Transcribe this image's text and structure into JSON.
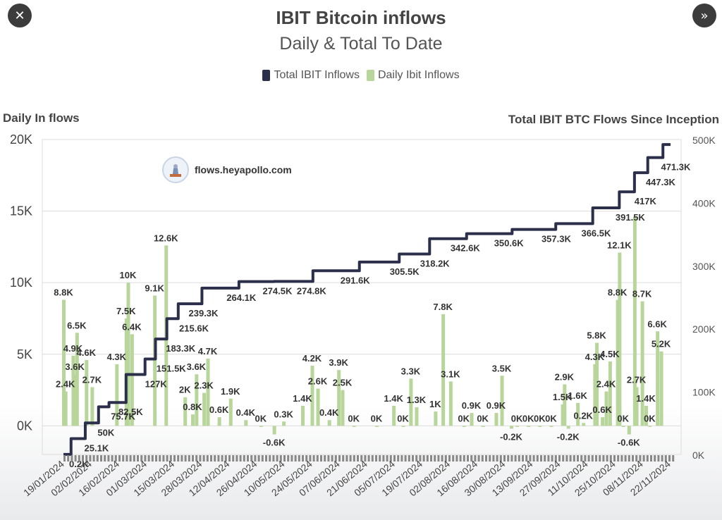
{
  "nav": {
    "close_glyph": "✕",
    "next_glyph": "»"
  },
  "colors": {
    "total": "#2b2f4a",
    "daily": "#b8d69b",
    "grid": "#dcdcdc"
  },
  "watermark": {
    "text": "flows.heyapollo.com",
    "logo_icon": "apollo-statue-logo"
  },
  "chart_data": {
    "type": "bar+line",
    "title": "IBIT Bitcoin inflows",
    "subtitle": "Daily & Total To Date",
    "legend": [
      "Total IBIT Inflows",
      "Daily Ibit Inflows"
    ],
    "legend_placement": "top-center",
    "ylabel_left": "Daily In flows",
    "ylabel_right": "Total IBIT BTC Flows Since Inception",
    "yticks_left": [
      "20K",
      "15K",
      "10K",
      "5K",
      "0K"
    ],
    "yticks_right": [
      "500K",
      "400K",
      "300K",
      "200K",
      "100K",
      "0K"
    ],
    "ylim_left": [
      -2000,
      20000
    ],
    "ylim_right": [
      0,
      500000
    ],
    "grid": true,
    "x_tick_labels": [
      "19/01/2024",
      "02/02/2024",
      "16/02/2024",
      "01/03/2024",
      "15/03/2024",
      "28/03/2024",
      "12/04/2024",
      "26/04/2024",
      "10/05/2024",
      "24/05/2024",
      "07/06/2024",
      "21/06/2024",
      "05/07/2024",
      "19/07/2024",
      "02/08/2024",
      "16/08/2024",
      "30/08/2024",
      "13/09/2024",
      "27/09/2024",
      "11/10/2024",
      "25/10/2024",
      "08/11/2024",
      "22/11/2024"
    ],
    "total_series": {
      "name": "Total IBIT Inflows",
      "points": [
        {
          "date": "2024-01-11",
          "value": 0.2,
          "label": "0.2K"
        },
        {
          "date": "2024-01-19",
          "value": 25.1,
          "label": "25.1K"
        },
        {
          "date": "2024-01-26",
          "value": 50,
          "label": "50K"
        },
        {
          "date": "2024-02-02",
          "value": 75.7,
          "label": "75.7K"
        },
        {
          "date": "2024-02-06",
          "value": 82.5,
          "label": "82.5K"
        },
        {
          "date": "2024-02-20",
          "value": 127,
          "label": "127K"
        },
        {
          "date": "2024-02-26",
          "value": 151.5,
          "label": "151.5K"
        },
        {
          "date": "2024-03-02",
          "value": 183.3,
          "label": "183.3K"
        },
        {
          "date": "2024-03-09",
          "value": 215.6,
          "label": "215.6K"
        },
        {
          "date": "2024-03-14",
          "value": 239.3,
          "label": "239.3K"
        },
        {
          "date": "2024-04-03",
          "value": 264.1,
          "label": "264.1K"
        },
        {
          "date": "2024-04-22",
          "value": 274.5,
          "label": "274.5K"
        },
        {
          "date": "2024-05-10",
          "value": 274.8,
          "label": "274.8K"
        },
        {
          "date": "2024-06-02",
          "value": 291.6,
          "label": "291.6K"
        },
        {
          "date": "2024-06-28",
          "value": 305.5,
          "label": "305.5K"
        },
        {
          "date": "2024-07-14",
          "value": 318.2,
          "label": "318.2K"
        },
        {
          "date": "2024-07-30",
          "value": 342.6,
          "label": "342.6K"
        },
        {
          "date": "2024-08-22",
          "value": 350.6,
          "label": "350.6K"
        },
        {
          "date": "2024-09-16",
          "value": 357.3,
          "label": "357.3K"
        },
        {
          "date": "2024-10-07",
          "value": 366.5,
          "label": "366.5K"
        },
        {
          "date": "2024-10-25",
          "value": 391.5,
          "label": "391.5K"
        },
        {
          "date": "2024-11-04",
          "value": 417,
          "label": "417K"
        },
        {
          "date": "2024-11-10",
          "value": 447.3,
          "label": "447.3K"
        },
        {
          "date": "2024-11-18",
          "value": 471.3,
          "label": "471.3K"
        },
        {
          "date": "2024-11-26",
          "value": 492,
          "label": ""
        }
      ]
    },
    "daily_series": {
      "name": "Daily Ibit Inflows",
      "values": [
        {
          "date": "2024-01-11",
          "value": 8.8,
          "label": "8.8K"
        },
        {
          "date": "2024-01-12",
          "value": 2.4,
          "label": "2.4K"
        },
        {
          "date": "2024-01-16",
          "value": 4.9,
          "label": "4.9K"
        },
        {
          "date": "2024-01-17",
          "value": 3.6,
          "label": "3.6K"
        },
        {
          "date": "2024-01-18",
          "value": 6.5,
          "label": "6.5K"
        },
        {
          "date": "2024-01-23",
          "value": 4.6,
          "label": "4.6K"
        },
        {
          "date": "2024-01-26",
          "value": 2.7,
          "label": "2.7K"
        },
        {
          "date": "2024-02-08",
          "value": 4.3,
          "label": "4.3K"
        },
        {
          "date": "2024-02-13",
          "value": 7.5,
          "label": "7.5K"
        },
        {
          "date": "2024-02-14",
          "value": 10,
          "label": "10K"
        },
        {
          "date": "2024-02-16",
          "value": 6.4,
          "label": "6.4K"
        },
        {
          "date": "2024-02-28",
          "value": 9.1,
          "label": "9.1K"
        },
        {
          "date": "2024-03-05",
          "value": 12.6,
          "label": "12.6K"
        },
        {
          "date": "2024-03-15",
          "value": 2,
          "label": "2K"
        },
        {
          "date": "2024-03-19",
          "value": 0.8,
          "label": "0.8K"
        },
        {
          "date": "2024-03-21",
          "value": 3.6,
          "label": "3.6K"
        },
        {
          "date": "2024-03-25",
          "value": 2.3,
          "label": "2.3K"
        },
        {
          "date": "2024-03-27",
          "value": 4.7,
          "label": "4.7K"
        },
        {
          "date": "2024-04-02",
          "value": 0.6,
          "label": "0.6K"
        },
        {
          "date": "2024-04-08",
          "value": 1.9,
          "label": "1.9K"
        },
        {
          "date": "2024-04-16",
          "value": 0.4,
          "label": "0.4K"
        },
        {
          "date": "2024-04-24",
          "value": 0,
          "label": "0K"
        },
        {
          "date": "2024-05-01",
          "value": -0.6,
          "label": "-0.6K"
        },
        {
          "date": "2024-05-06",
          "value": 0.3,
          "label": "0.3K"
        },
        {
          "date": "2024-05-16",
          "value": 1.4,
          "label": "1.4K"
        },
        {
          "date": "2024-05-21",
          "value": 4.2,
          "label": "4.2K"
        },
        {
          "date": "2024-05-24",
          "value": 2.6,
          "label": "2.6K"
        },
        {
          "date": "2024-05-30",
          "value": 0.4,
          "label": "0.4K"
        },
        {
          "date": "2024-06-04",
          "value": 3.9,
          "label": "3.9K"
        },
        {
          "date": "2024-06-06",
          "value": 2.5,
          "label": "2.5K"
        },
        {
          "date": "2024-06-12",
          "value": 0,
          "label": "0K"
        },
        {
          "date": "2024-06-24",
          "value": 0,
          "label": "0K"
        },
        {
          "date": "2024-07-03",
          "value": 1.4,
          "label": "1.4K"
        },
        {
          "date": "2024-07-08",
          "value": 0,
          "label": "0K"
        },
        {
          "date": "2024-07-12",
          "value": 3.3,
          "label": "3.3K"
        },
        {
          "date": "2024-07-15",
          "value": 1.3,
          "label": "1.3K"
        },
        {
          "date": "2024-07-25",
          "value": 1,
          "label": "1K"
        },
        {
          "date": "2024-07-29",
          "value": 7.8,
          "label": "7.8K"
        },
        {
          "date": "2024-08-02",
          "value": 3.1,
          "label": "3.1K"
        },
        {
          "date": "2024-08-09",
          "value": 0,
          "label": "0K"
        },
        {
          "date": "2024-08-13",
          "value": 0.9,
          "label": "0.9K"
        },
        {
          "date": "2024-08-19",
          "value": 0,
          "label": "0K"
        },
        {
          "date": "2024-08-26",
          "value": 0.9,
          "label": "0.9K"
        },
        {
          "date": "2024-08-29",
          "value": 3.5,
          "label": "3.5K"
        },
        {
          "date": "2024-09-03",
          "value": -0.2,
          "label": "-0.2K"
        },
        {
          "date": "2024-09-06",
          "value": 0,
          "label": "0K"
        },
        {
          "date": "2024-09-12",
          "value": 0,
          "label": "0K"
        },
        {
          "date": "2024-09-18",
          "value": 0,
          "label": "0K"
        },
        {
          "date": "2024-09-24",
          "value": 0,
          "label": "0K"
        },
        {
          "date": "2024-09-30",
          "value": 1.5,
          "label": "1.5K"
        },
        {
          "date": "2024-10-01",
          "value": 2.9,
          "label": "2.9K"
        },
        {
          "date": "2024-10-03",
          "value": -0.2,
          "label": "-0.2K"
        },
        {
          "date": "2024-10-08",
          "value": 1.6,
          "label": "1.6K"
        },
        {
          "date": "2024-10-11",
          "value": 0.2,
          "label": "0.2K"
        },
        {
          "date": "2024-10-17",
          "value": 4.3,
          "label": "4.3K"
        },
        {
          "date": "2024-10-18",
          "value": 5.8,
          "label": "5.8K"
        },
        {
          "date": "2024-10-21",
          "value": 0.6,
          "label": "0.6K"
        },
        {
          "date": "2024-10-23",
          "value": 2.4,
          "label": "2.4K"
        },
        {
          "date": "2024-10-25",
          "value": 4.5,
          "label": "4.5K"
        },
        {
          "date": "2024-10-29",
          "value": 8.8,
          "label": "8.8K"
        },
        {
          "date": "2024-10-30",
          "value": 12.1,
          "label": "12.1K"
        },
        {
          "date": "2024-11-01",
          "value": 0,
          "label": "0K"
        },
        {
          "date": "2024-11-04",
          "value": -0.6,
          "label": "-0.6K"
        },
        {
          "date": "2024-11-07",
          "value": 14.6,
          "label": ""
        },
        {
          "date": "2024-11-08",
          "value": 2.7,
          "label": "2.7K"
        },
        {
          "date": "2024-11-11",
          "value": 8.7,
          "label": "8.7K"
        },
        {
          "date": "2024-11-13",
          "value": 1.4,
          "label": "1.4K"
        },
        {
          "date": "2024-11-15",
          "value": 0,
          "label": "0K"
        },
        {
          "date": "2024-11-19",
          "value": 6.6,
          "label": "6.6K"
        },
        {
          "date": "2024-11-21",
          "value": 5.2,
          "label": "5.2K"
        }
      ]
    }
  }
}
